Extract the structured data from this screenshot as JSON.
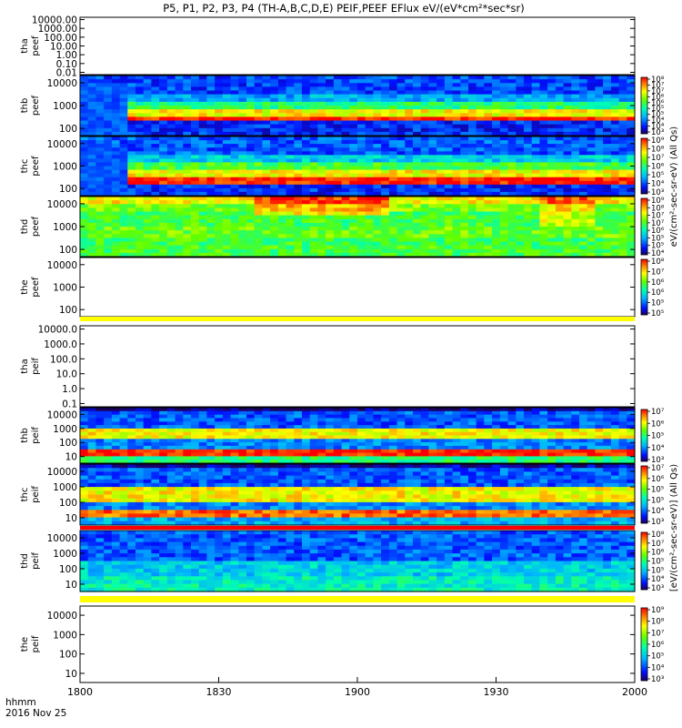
{
  "title": "P5, P1, P2, P3, P4 (TH-A,B,C,D,E) PEIF,PEEF EFlux eV/(eV*cm²*sec*sr)",
  "x_axis": {
    "ticks": [
      "1800",
      "1830",
      "1900",
      "1930",
      "2000"
    ],
    "label_line1": "hhmm",
    "label_line2": "2016 Nov 25"
  },
  "colorbar_labels": {
    "electron": "eV/(cm²-sec-sr-eV) (All Qs)",
    "ion": "[eV/(cm²-sec-sr-eV)] (All Qs)"
  },
  "colors": {
    "band_yellow": "#ffff00",
    "band_red": "#ff0000"
  },
  "chart_data": [
    {
      "type": "heatmap",
      "name": "tha peef",
      "label": [
        "tha",
        "peef"
      ],
      "ylog": true,
      "yticks": [
        "10000.00",
        "1000.00",
        "100.00",
        "10.00",
        "1.00",
        "0.10",
        "0.01"
      ],
      "cbar": null,
      "data": "none"
    },
    {
      "type": "heatmap",
      "name": "thb peef",
      "label": [
        "thb",
        "peef"
      ],
      "ylog": true,
      "yticks": [
        "10000",
        "1000",
        "100"
      ],
      "cbar": [
        "10⁸",
        "10⁷",
        "10⁷",
        "10⁶",
        "10⁶",
        "10⁵",
        "10⁵",
        "10⁴",
        "10⁴",
        "10³"
      ]
    },
    {
      "type": "heatmap",
      "name": "thc peef",
      "label": [
        "thc",
        "peef"
      ],
      "ylog": true,
      "yticks": [
        "10000",
        "1000",
        "100"
      ],
      "cbar": [
        "10⁹",
        "10⁸",
        "10⁷",
        "10⁶",
        "10⁵",
        "10⁴",
        "10³"
      ]
    },
    {
      "type": "heatmap",
      "name": "thd peef",
      "label": [
        "thd",
        "peef"
      ],
      "ylog": true,
      "yticks": [
        "10000",
        "1000",
        "100"
      ],
      "cbar": [
        "10⁹",
        "10⁸",
        "10⁷",
        "10⁷",
        "10⁶",
        "10⁵",
        "10⁵",
        "10⁴"
      ]
    },
    {
      "type": "heatmap",
      "name": "the peef",
      "label": [
        "the",
        "peef"
      ],
      "ylog": true,
      "yticks": [
        "10000",
        "1000",
        "100"
      ],
      "cbar": [
        "10⁸",
        "10⁷",
        "10⁶",
        "10⁶",
        "10⁵",
        "10⁵"
      ],
      "data": "none"
    },
    {
      "type": "heatmap",
      "name": "tha peif",
      "label": [
        "tha",
        "peif"
      ],
      "ylog": true,
      "yticks": [
        "10000.0",
        "1000.0",
        "100.0",
        "10.0",
        "1.0",
        "0.1"
      ],
      "cbar": null,
      "data": "none"
    },
    {
      "type": "heatmap",
      "name": "thb peif",
      "label": [
        "thb",
        "peif"
      ],
      "ylog": true,
      "yticks": [
        "10000",
        "1000",
        "100",
        "10"
      ],
      "cbar": [
        "10⁷",
        "10⁶",
        "10⁵",
        "10⁴",
        "10³"
      ]
    },
    {
      "type": "heatmap",
      "name": "thc peif",
      "label": [
        "thc",
        "peif"
      ],
      "ylog": true,
      "yticks": [
        "10000",
        "1000",
        "100",
        "10"
      ],
      "cbar": [
        "10⁷",
        "10⁶",
        "10⁵",
        "10⁵",
        "10⁴",
        "10³"
      ]
    },
    {
      "type": "heatmap",
      "name": "thd peif",
      "label": [
        "thd",
        "peif"
      ],
      "ylog": true,
      "yticks": [
        "10000",
        "1000",
        "100",
        "10"
      ],
      "cbar": [
        "10⁸",
        "10⁷",
        "10⁶",
        "10⁵",
        "10⁵",
        "10⁴",
        "10³"
      ]
    },
    {
      "type": "heatmap",
      "name": "the peif",
      "label": [
        "the",
        "peif"
      ],
      "ylog": true,
      "yticks": [
        "10000",
        "1000",
        "100",
        "10"
      ],
      "cbar": [
        "10⁹",
        "10⁸",
        "10⁷",
        "10⁶",
        "10⁵",
        "10⁴",
        "10³"
      ],
      "data": "none"
    }
  ]
}
